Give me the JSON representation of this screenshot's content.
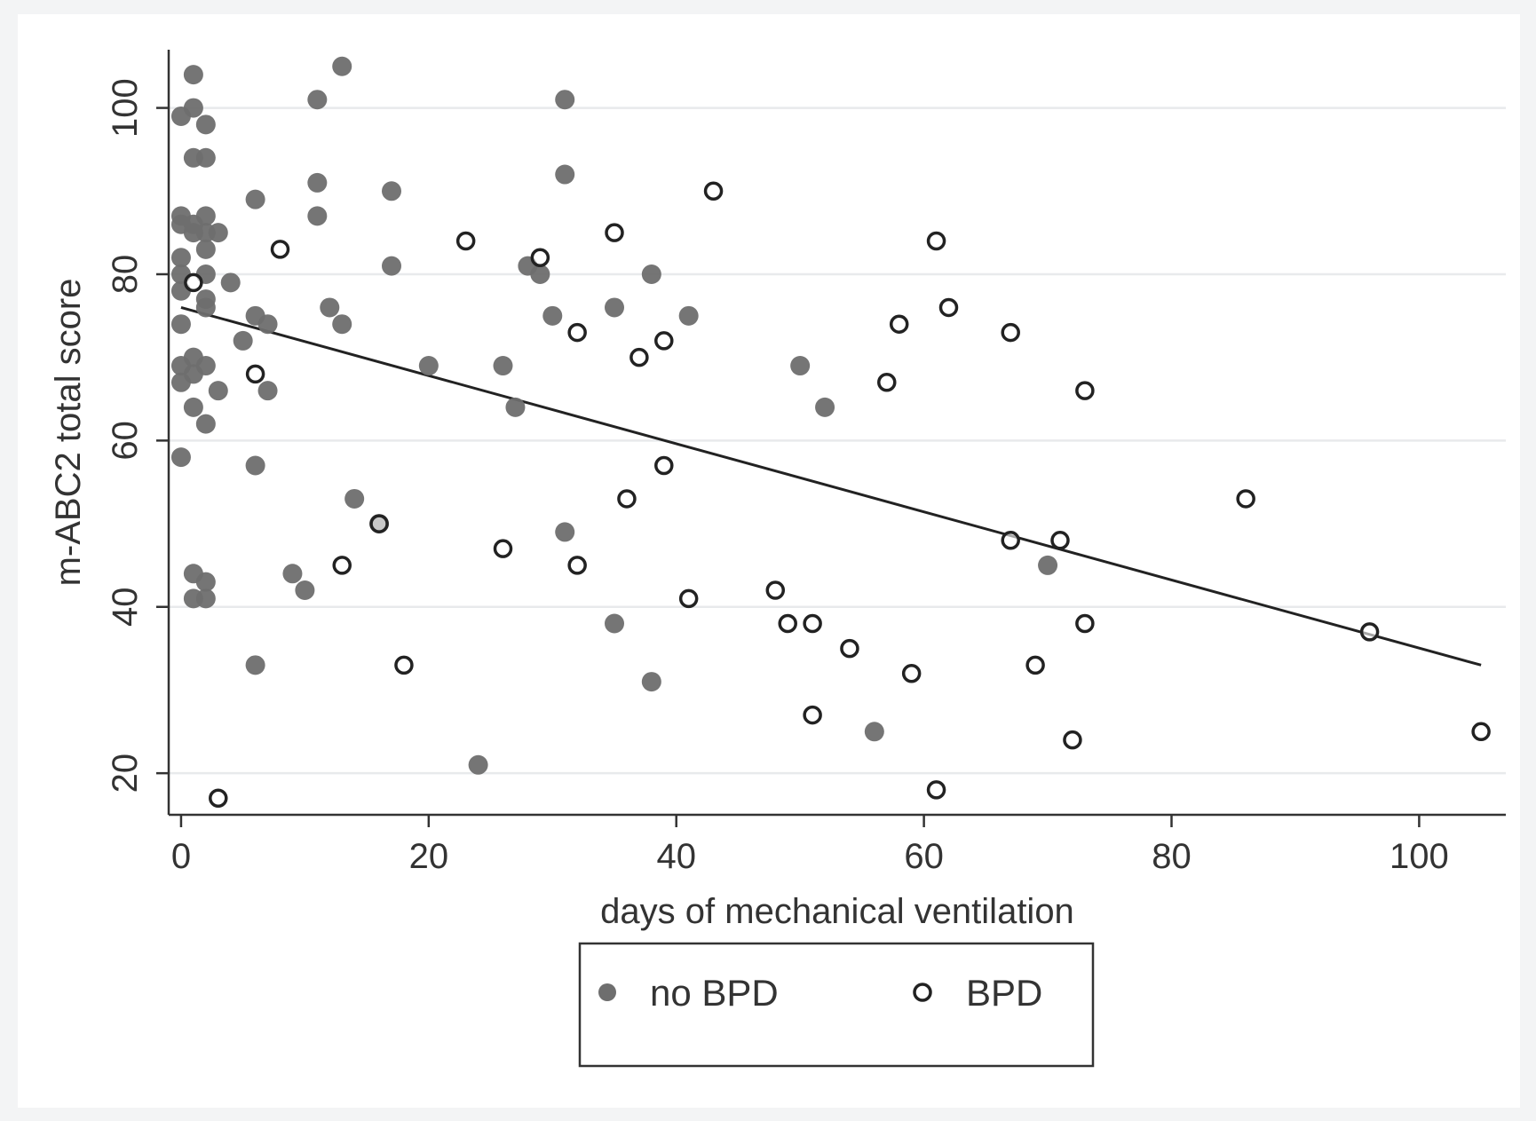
{
  "chart_data": {
    "type": "scatter",
    "title": "",
    "xlabel": "days of mechanical ventilation",
    "ylabel": "m-ABC2 total score",
    "xlim": [
      -1,
      107
    ],
    "ylim": [
      15,
      107
    ],
    "xticks": [
      0,
      20,
      40,
      60,
      80,
      100
    ],
    "yticks": [
      20,
      40,
      60,
      80,
      100
    ],
    "xtick_labels": [
      "0",
      "20",
      "40",
      "60",
      "80",
      "100"
    ],
    "ytick_labels": [
      "20",
      "40",
      "60",
      "80",
      "100"
    ],
    "grid": "horizontal",
    "legend_position": "bottom",
    "series": [
      {
        "name": "no BPD",
        "marker": "filled-circle",
        "color": "#6e6e6e",
        "points": [
          [
            0,
            99
          ],
          [
            1,
            104
          ],
          [
            1,
            100
          ],
          [
            2,
            98
          ],
          [
            1,
            94
          ],
          [
            2,
            94
          ],
          [
            0,
            87
          ],
          [
            0,
            86
          ],
          [
            1,
            86
          ],
          [
            2,
            87
          ],
          [
            2,
            85
          ],
          [
            3,
            85
          ],
          [
            1,
            85
          ],
          [
            2,
            83
          ],
          [
            0,
            82
          ],
          [
            0,
            80
          ],
          [
            0,
            78
          ],
          [
            2,
            80
          ],
          [
            2,
            77
          ],
          [
            2,
            76
          ],
          [
            4,
            79
          ],
          [
            0,
            74
          ],
          [
            0,
            69
          ],
          [
            0,
            67
          ],
          [
            1,
            70
          ],
          [
            1,
            68
          ],
          [
            2,
            69
          ],
          [
            1,
            64
          ],
          [
            2,
            62
          ],
          [
            3,
            66
          ],
          [
            0,
            58
          ],
          [
            1,
            44
          ],
          [
            2,
            43
          ],
          [
            1,
            41
          ],
          [
            2,
            41
          ],
          [
            5,
            72
          ],
          [
            6,
            75
          ],
          [
            7,
            74
          ],
          [
            6,
            89
          ],
          [
            7,
            66
          ],
          [
            6,
            57
          ],
          [
            6,
            33
          ],
          [
            9,
            44
          ],
          [
            10,
            42
          ],
          [
            11,
            101
          ],
          [
            11,
            91
          ],
          [
            11,
            87
          ],
          [
            12,
            76
          ],
          [
            13,
            105
          ],
          [
            13,
            74
          ],
          [
            14,
            53
          ],
          [
            16,
            50
          ],
          [
            17,
            90
          ],
          [
            17,
            81
          ],
          [
            20,
            69
          ],
          [
            24,
            21
          ],
          [
            26,
            69
          ],
          [
            27,
            64
          ],
          [
            28,
            81
          ],
          [
            29,
            80
          ],
          [
            30,
            75
          ],
          [
            31,
            101
          ],
          [
            31,
            92
          ],
          [
            31,
            49
          ],
          [
            35,
            76
          ],
          [
            35,
            38
          ],
          [
            38,
            80
          ],
          [
            38,
            31
          ],
          [
            41,
            75
          ],
          [
            50,
            69
          ],
          [
            52,
            64
          ],
          [
            56,
            25
          ],
          [
            70,
            45
          ]
        ]
      },
      {
        "name": "BPD",
        "marker": "hollow-circle",
        "color": "#222222",
        "points": [
          [
            1,
            79
          ],
          [
            3,
            17
          ],
          [
            6,
            68
          ],
          [
            8,
            83
          ],
          [
            13,
            45
          ],
          [
            16,
            50
          ],
          [
            18,
            33
          ],
          [
            23,
            84
          ],
          [
            26,
            47
          ],
          [
            29,
            82
          ],
          [
            32,
            73
          ],
          [
            32,
            45
          ],
          [
            35,
            85
          ],
          [
            36,
            53
          ],
          [
            37,
            70
          ],
          [
            39,
            72
          ],
          [
            39,
            57
          ],
          [
            41,
            41
          ],
          [
            43,
            90
          ],
          [
            48,
            42
          ],
          [
            49,
            38
          ],
          [
            51,
            38
          ],
          [
            51,
            27
          ],
          [
            54,
            35
          ],
          [
            57,
            67
          ],
          [
            58,
            74
          ],
          [
            59,
            32
          ],
          [
            61,
            84
          ],
          [
            61,
            18
          ],
          [
            62,
            76
          ],
          [
            67,
            73
          ],
          [
            67,
            48
          ],
          [
            69,
            33
          ],
          [
            71,
            48
          ],
          [
            72,
            24
          ],
          [
            73,
            66
          ],
          [
            73,
            38
          ],
          [
            86,
            53
          ],
          [
            96,
            37
          ],
          [
            105,
            25
          ]
        ]
      }
    ],
    "fit_line": {
      "type": "linear",
      "color": "#222222",
      "points": [
        [
          0,
          76
        ],
        [
          105,
          33
        ]
      ]
    }
  },
  "legend": {
    "items": [
      {
        "label": "no BPD",
        "marker": "filled-circle"
      },
      {
        "label": "BPD",
        "marker": "hollow-circle"
      }
    ]
  }
}
